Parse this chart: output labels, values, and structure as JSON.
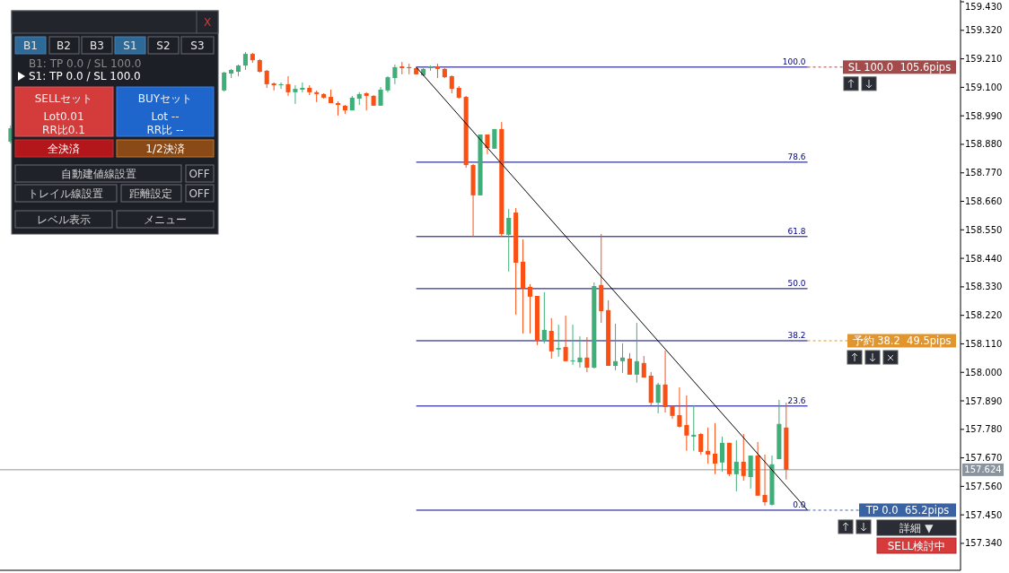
{
  "chart_data": {
    "type": "candlestick",
    "tick_labels": "y",
    "categories": [
      null,
      null,
      null,
      null,
      null,
      null,
      null,
      null,
      null,
      null,
      null,
      null,
      null,
      null,
      null,
      null,
      null,
      null,
      null,
      null,
      null,
      null,
      null,
      null,
      null,
      null,
      null,
      null,
      null,
      null,
      null,
      null,
      null,
      null,
      null,
      null,
      null,
      null,
      null,
      null,
      null,
      null,
      null,
      null,
      null,
      null,
      null,
      null,
      null,
      null,
      null,
      null,
      null,
      null,
      null,
      null,
      null,
      null,
      null,
      null,
      null,
      null,
      null,
      null,
      null,
      null,
      null,
      null,
      null,
      null,
      null,
      null,
      null,
      null,
      null,
      null,
      null,
      null,
      null,
      null,
      null,
      null,
      null,
      null,
      null,
      null,
      null,
      null,
      null,
      null,
      null,
      null,
      null,
      null,
      null,
      null,
      null,
      null,
      null,
      null,
      null,
      null,
      null,
      null,
      null,
      null,
      null,
      null,
      null,
      null,
      null,
      null,
      null,
      null,
      null,
      null,
      null,
      null,
      null,
      null,
      null,
      null,
      null,
      null,
      null,
      null,
      null,
      null,
      null,
      null,
      null,
      null,
      null,
      null,
      null
    ],
    "ohlc": [
      null,
      [
        158.89,
        158.953,
        158.883,
        158.942
      ],
      null,
      null,
      null,
      null,
      null,
      null,
      null,
      null,
      null,
      null,
      null,
      null,
      null,
      null,
      null,
      null,
      null,
      null,
      null,
      null,
      null,
      null,
      null,
      null,
      null,
      null,
      null,
      null,
      null,
      [
        159.088,
        159.16,
        159.084,
        159.157
      ],
      [
        159.153,
        159.171,
        159.136,
        159.167
      ],
      [
        159.16,
        159.188,
        159.143,
        159.184
      ],
      [
        159.184,
        159.236,
        159.167,
        159.229
      ],
      [
        159.229,
        159.233,
        159.195,
        159.205
      ],
      [
        159.205,
        159.209,
        159.157,
        159.16
      ],
      [
        159.164,
        159.167,
        159.098,
        159.112
      ],
      [
        159.115,
        159.119,
        159.088,
        159.108
      ],
      [
        159.108,
        159.119,
        159.094,
        159.112
      ],
      [
        159.112,
        159.143,
        159.067,
        159.081
      ],
      [
        159.081,
        159.108,
        159.036,
        159.094
      ],
      [
        159.091,
        159.119,
        159.081,
        159.098
      ],
      [
        159.098,
        159.108,
        159.07,
        159.081
      ],
      [
        159.081,
        159.088,
        159.043,
        159.074
      ],
      [
        159.074,
        159.077,
        159.056,
        159.06
      ],
      [
        159.063,
        159.091,
        159.039,
        159.039
      ],
      [
        159.039,
        159.046,
        158.991,
        159.032
      ],
      [
        159.029,
        159.032,
        158.998,
        159.011
      ],
      [
        159.011,
        159.067,
        159.011,
        159.06
      ],
      [
        159.056,
        159.081,
        159.032,
        159.074
      ],
      [
        159.077,
        159.081,
        159.011,
        159.067
      ],
      [
        159.067,
        159.07,
        159.029,
        159.029
      ],
      [
        159.029,
        159.101,
        159.029,
        159.091
      ],
      [
        159.088,
        159.143,
        159.081,
        159.139
      ],
      [
        159.136,
        159.188,
        159.112,
        159.178
      ],
      [
        159.181,
        159.198,
        159.15,
        159.174
      ],
      [
        159.178,
        159.191,
        159.15,
        159.174
      ],
      [
        159.174,
        159.178,
        159.15,
        159.15
      ],
      [
        159.146,
        159.174,
        159.143,
        159.171
      ],
      [
        159.174,
        159.184,
        159.164,
        159.181
      ],
      [
        159.181,
        159.191,
        159.136,
        159.171
      ],
      [
        159.171,
        159.174,
        159.136,
        159.139
      ],
      [
        159.143,
        159.146,
        159.077,
        159.094
      ],
      [
        159.098,
        159.105,
        159.056,
        159.06
      ],
      [
        159.063,
        159.067,
        158.79,
        158.8
      ],
      [
        158.8,
        158.804,
        158.524,
        158.683
      ],
      [
        158.683,
        158.918,
        158.683,
        158.918
      ],
      [
        158.918,
        158.918,
        158.842,
        158.866
      ],
      [
        158.863,
        158.939,
        158.863,
        158.939
      ],
      [
        158.939,
        158.966,
        158.524,
        158.534
      ],
      [
        158.531,
        158.631,
        158.389,
        158.596
      ],
      [
        158.617,
        158.634,
        158.223,
        158.423
      ],
      [
        158.427,
        158.513,
        158.15,
        158.326
      ],
      [
        158.33,
        158.34,
        158.15,
        158.292
      ],
      [
        158.295,
        158.295,
        158.105,
        158.122
      ],
      [
        158.122,
        158.309,
        158.112,
        158.164
      ],
      [
        158.16,
        158.209,
        158.053,
        158.081
      ],
      [
        158.088,
        158.184,
        158.06,
        158.094
      ],
      [
        158.098,
        158.219,
        158.043,
        158.043
      ],
      [
        158.043,
        158.184,
        158.029,
        158.046
      ],
      [
        158.039,
        158.139,
        158.018,
        158.057
      ],
      [
        158.057,
        158.136,
        158.001,
        158.018
      ],
      [
        158.018,
        158.347,
        158.015,
        158.333
      ],
      [
        158.337,
        158.534,
        158.191,
        158.236
      ],
      [
        158.24,
        158.278,
        158.025,
        158.025
      ],
      [
        158.025,
        158.188,
        158.008,
        158.043
      ],
      [
        158.043,
        158.112,
        157.998,
        158.057
      ],
      [
        158.053,
        158.074,
        157.991,
        157.991
      ],
      [
        157.991,
        158.191,
        157.96,
        158.043
      ],
      [
        158.036,
        158.063,
        157.98,
        157.98
      ],
      [
        157.987,
        158.001,
        157.873,
        157.883
      ],
      [
        157.883,
        157.96,
        157.842,
        157.953
      ],
      [
        157.953,
        158.084,
        157.845,
        157.866
      ],
      [
        157.87,
        157.873,
        157.821,
        157.832
      ],
      [
        157.835,
        157.942,
        157.787,
        157.79
      ],
      [
        157.797,
        157.911,
        157.697,
        157.756
      ],
      [
        157.752,
        157.873,
        157.697,
        157.759
      ],
      [
        157.762,
        157.766,
        157.683,
        157.693
      ],
      [
        157.697,
        157.787,
        157.648,
        157.683
      ],
      [
        157.686,
        157.804,
        157.607,
        157.648
      ],
      [
        157.652,
        157.752,
        157.617,
        157.728
      ],
      [
        157.728,
        157.728,
        157.6,
        157.607
      ],
      [
        157.607,
        157.738,
        157.541,
        157.655
      ],
      [
        157.655,
        157.762,
        157.582,
        157.6
      ],
      [
        157.596,
        157.679,
        157.551,
        157.679
      ],
      [
        157.679,
        157.731,
        157.524,
        157.524
      ],
      [
        157.527,
        157.683,
        157.486,
        157.499
      ],
      [
        157.489,
        157.679,
        157.486,
        157.645
      ],
      [
        157.665,
        157.894,
        157.665,
        157.801
      ],
      [
        157.787,
        157.883,
        157.586,
        157.624
      ],
      null,
      null,
      null,
      null,
      null,
      null,
      null,
      null,
      null,
      null,
      null,
      null,
      null,
      null,
      null,
      null,
      null,
      null,
      null,
      null,
      null,
      null,
      null,
      null
    ],
    "colors": [
      null,
      "#3fae78",
      null,
      null,
      null,
      null,
      null,
      null,
      null,
      null,
      null,
      null,
      null,
      null,
      null,
      null,
      null,
      null,
      null,
      null,
      null,
      null,
      null,
      null,
      null,
      null,
      null,
      null,
      null,
      null,
      null,
      "#3fae78",
      "#3fae78",
      "#3fae78",
      "#3fae78",
      "#fa5014",
      "#fa5014",
      "#fa5014",
      "#fa5014",
      "#3fae78",
      "#fa5014",
      "#3fae78",
      "#3fae78",
      "#fa5014",
      "#fa5014",
      "#fa5014",
      "#fa5014",
      "#fa5014",
      "#fa5014",
      "#3fae78",
      "#3fae78",
      "#fa5014",
      "#fa5014",
      "#3fae78",
      "#3fae78",
      "#3fae78",
      "#fa5014",
      "#fa5014",
      "#fa5014",
      "#3fae78",
      "#3fae78",
      "#fa5014",
      "#fa5014",
      "#fa5014",
      "#fa5014",
      "#fa5014",
      "#fa5014",
      "#3fae78",
      "#fa5014",
      "#3fae78",
      "#fa5014",
      "#3fae78",
      "#fa5014",
      "#fa5014",
      "#fa5014",
      "#fa5014",
      "#3fae78",
      "#fa5014",
      "#3fae78",
      "#fa5014",
      "#3fae78",
      "#3fae78",
      "#fa5014",
      "#3fae78",
      "#fa5014",
      "#fa5014",
      "#3fae78",
      "#3fae78",
      "#fa5014",
      "#3fae78",
      "#fa5014",
      "#fa5014",
      "#3fae78",
      "#fa5014",
      "#fa5014",
      "#fa5014",
      "#fa5014",
      "#3fae78",
      "#fa5014",
      "#fa5014",
      "#fa5014",
      "#3fae78",
      "#fa5014",
      "#3fae78",
      "#fa5014",
      "#3fae78",
      "#fa5014",
      "#fa5014",
      "#3fae78",
      "#3fae78",
      "#fa5014",
      null,
      null,
      null,
      null,
      null,
      null,
      null,
      null,
      null,
      null,
      null,
      null,
      null,
      null,
      null,
      null,
      null,
      null,
      null,
      null,
      null,
      null,
      null,
      null
    ],
    "series": [
      {
        "type": "line",
        "color": "#000000",
        "values": [
          null,
          null,
          null,
          null,
          null,
          null,
          null,
          null,
          null,
          null,
          null,
          null,
          null,
          null,
          null,
          null,
          null,
          null,
          null,
          null,
          null,
          null,
          null,
          null,
          null,
          null,
          null,
          null,
          null,
          null,
          null,
          null,
          null,
          null,
          null,
          null,
          null,
          null,
          null,
          null,
          null,
          null,
          null,
          null,
          null,
          null,
          null,
          null,
          null,
          null,
          null,
          null,
          null,
          null,
          null,
          null,
          null,
          null,
          159.178,
          null,
          null,
          null,
          null,
          null,
          null,
          null,
          null,
          null,
          null,
          null,
          null,
          null,
          null,
          null,
          null,
          null,
          null,
          null,
          null,
          null,
          null,
          null,
          null,
          null,
          null,
          null,
          null,
          null,
          null,
          null,
          null,
          null,
          null,
          null,
          null,
          null,
          null,
          null,
          null,
          null,
          null,
          null,
          null,
          null,
          null,
          null,
          null,
          null,
          null,
          null,
          null,
          null,
          null,
          157.468,
          null,
          null,
          null,
          null,
          null,
          null,
          null,
          null,
          null,
          null,
          null,
          null,
          null,
          null,
          null,
          null,
          null,
          null,
          null,
          null,
          null
        ]
      }
    ],
    "ylim": [
      157.236,
      159.437
    ],
    "yticks": [
      {
        "value": 157.34,
        "label": "157.340"
      },
      {
        "value": 157.45,
        "label": "157.450"
      },
      {
        "value": 157.56,
        "label": "157.560"
      },
      {
        "value": 157.67,
        "label": "157.670"
      },
      {
        "value": 157.78,
        "label": "157.780"
      },
      {
        "value": 157.89,
        "label": "157.890"
      },
      {
        "value": 158.0,
        "label": "158.000"
      },
      {
        "value": 158.11,
        "label": "158.110"
      },
      {
        "value": 158.22,
        "label": "158.220"
      },
      {
        "value": 158.33,
        "label": "158.330"
      },
      {
        "value": 158.44,
        "label": "158.440"
      },
      {
        "value": 158.55,
        "label": "158.550"
      },
      {
        "value": 158.66,
        "label": "158.660"
      },
      {
        "value": 158.77,
        "label": "158.770"
      },
      {
        "value": 158.88,
        "label": "158.880"
      },
      {
        "value": 158.99,
        "label": "158.990"
      },
      {
        "value": 159.1,
        "label": "159.100"
      },
      {
        "value": 159.21,
        "label": "159.210"
      },
      {
        "value": 159.32,
        "label": "159.320"
      },
      {
        "value": 159.43,
        "label": "159.430"
      }
    ],
    "ref_lines": [
      {
        "axis": "y",
        "value": 159.178,
        "color": "#000080"
      },
      {
        "axis": "y",
        "value": 158.811,
        "color": "#000080"
      },
      {
        "axis": "y",
        "value": 158.524,
        "color": "#000080"
      },
      {
        "axis": "y",
        "value": 158.323,
        "color": "#000080"
      },
      {
        "axis": "y",
        "value": 158.122,
        "color": "#000080"
      },
      {
        "axis": "y",
        "value": 157.87,
        "color": "#000080"
      },
      {
        "axis": "y",
        "value": 157.468,
        "color": "#000080"
      },
      {
        "axis": "y",
        "value": 157.624,
        "label": "157.624",
        "color": "#8a949e"
      }
    ],
    "annotations": [
      "X",
      "B1",
      "B2",
      "B3",
      "S1",
      "S2",
      "S3",
      "B1: TP 0.0 / SL 100.0",
      "S1: TP 0.0 / SL 100.0",
      "SELLセット",
      "Lot0.01",
      "RR比0.1",
      "BUYセット",
      "Lot --",
      "RR比 --",
      "全決済",
      "1/2決済",
      "自動建値線設置",
      "OFF",
      "トレイル線設置",
      "距離設定",
      "OFF",
      "レベル表示",
      "メニュー",
      "詳細 ▼",
      "SELL検討中",
      "100.0",
      "78.6",
      "61.8",
      "50.0",
      "38.2",
      "23.6",
      "0.0",
      "SL 100.0  105.6pips",
      "予約 38.2  49.5pips",
      "TP 0.0  65.2pips"
    ]
  }
}
